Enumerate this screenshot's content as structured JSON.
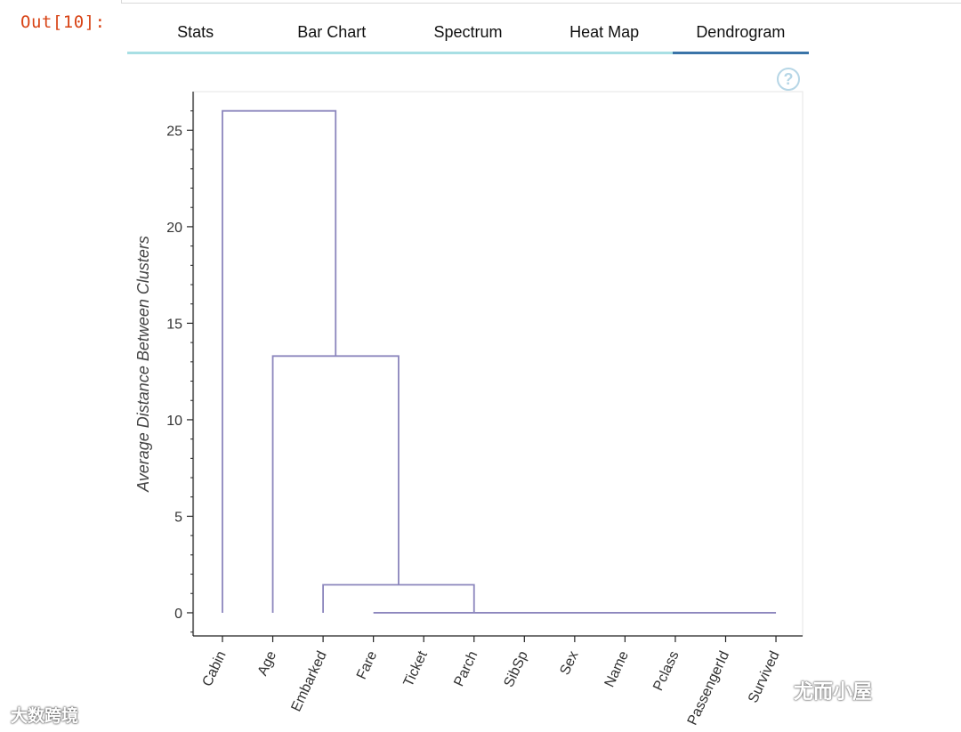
{
  "cell": {
    "out_prompt": "Out[10]:"
  },
  "tabs": [
    {
      "label": "Stats",
      "active": false
    },
    {
      "label": "Bar Chart",
      "active": false
    },
    {
      "label": "Spectrum",
      "active": false
    },
    {
      "label": "Heat Map",
      "active": false
    },
    {
      "label": "Dendrogram",
      "active": true
    }
  ],
  "help": {
    "glyph": "?"
  },
  "colors": {
    "link": "#8c86bd",
    "accent_tab": "#3a74a8",
    "inactive_tab": "#a8dfe4",
    "prompt": "#d84315"
  },
  "watermarks": {
    "left": "大数跨境",
    "right": "尤而小屋"
  },
  "chart_data": {
    "type": "dendrogram",
    "title": "",
    "xlabel": "",
    "ylabel": "Average Distance Between Clusters",
    "ylim": [
      -1.2,
      27
    ],
    "yticks": [
      0,
      5,
      10,
      15,
      20,
      25
    ],
    "leaves": [
      "Cabin",
      "Age",
      "Embarked",
      "Fare",
      "Ticket",
      "Parch",
      "SibSp",
      "Sex",
      "Name",
      "Pclass",
      "PassengerId",
      "Survived"
    ],
    "links": [
      {
        "left_pos": 3,
        "right_pos": 11,
        "left_height": 0,
        "right_height": 0,
        "height": 0
      },
      {
        "left_pos": 2,
        "right_pos": 5,
        "left_height": 0,
        "right_height": 0,
        "height": 1.45
      },
      {
        "left_pos": 1,
        "right_pos": 3.5,
        "left_height": 0,
        "right_height": 1.45,
        "height": 13.3
      },
      {
        "left_pos": 0,
        "right_pos": 2.25,
        "left_height": 0,
        "right_height": 13.3,
        "height": 26.0
      }
    ]
  }
}
